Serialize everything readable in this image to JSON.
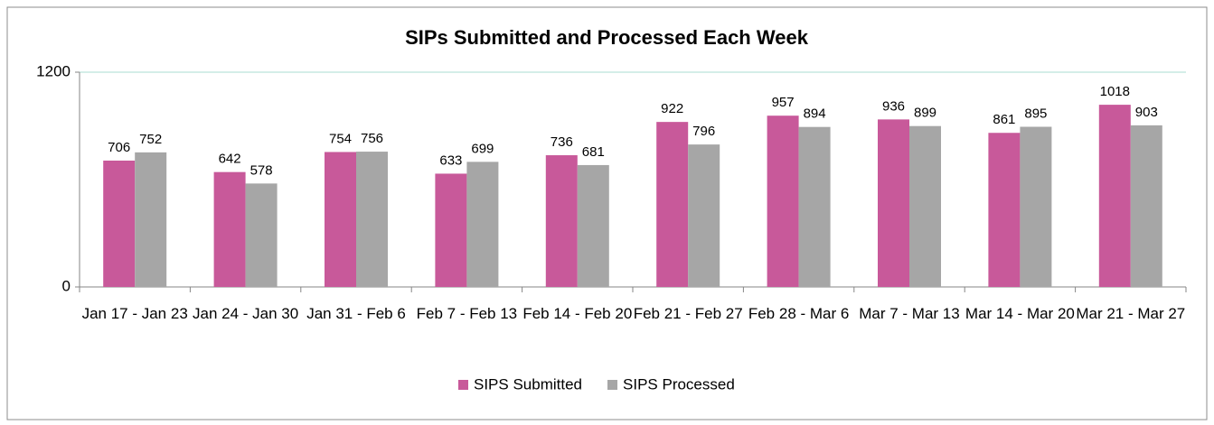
{
  "chart_data": {
    "type": "bar",
    "title": "SIPs Submitted and Processed Each Week",
    "categories": [
      "Jan 17 - Jan 23",
      "Jan 24 - Jan 30",
      "Jan 31 - Feb 6",
      "Feb 7 - Feb 13",
      "Feb 14 - Feb 20",
      "Feb 21 - Feb 27",
      "Feb 28 - Mar 6",
      "Mar 7 - Mar 13",
      "Mar 14 - Mar 20",
      "Mar 21 - Mar 27"
    ],
    "series": [
      {
        "name": "SIPS Submitted",
        "color": "#c8599a",
        "values": [
          706,
          642,
          754,
          633,
          736,
          922,
          957,
          936,
          861,
          1018
        ]
      },
      {
        "name": "SIPS Processed",
        "color": "#a6a6a6",
        "values": [
          752,
          578,
          756,
          699,
          681,
          796,
          894,
          899,
          895,
          903
        ]
      }
    ],
    "ylim": [
      0,
      1200
    ],
    "yticks": [
      0,
      1200
    ],
    "grid": true,
    "legend": "bottom"
  }
}
